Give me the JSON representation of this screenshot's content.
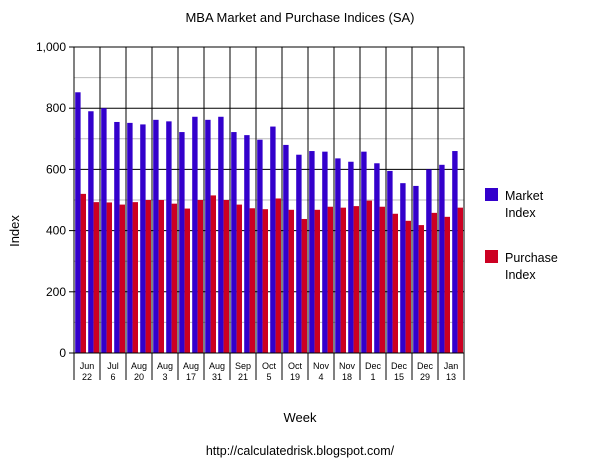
{
  "chart_data": {
    "type": "bar",
    "title": "MBA Market and Purchase Indices (SA)",
    "xlabel": "Week",
    "ylabel": "Index",
    "ylim": [
      0,
      1000
    ],
    "yticks": [
      0,
      200,
      400,
      600,
      800,
      "1,000"
    ],
    "grid": true,
    "legend_position": "right",
    "colors": {
      "market": "#3300cc",
      "purchase": "#cc0022"
    },
    "x_tick_labels": [
      [
        "Jun",
        "22"
      ],
      [
        "Jul",
        "6"
      ],
      [
        "Aug",
        "20"
      ],
      [
        "Aug",
        "3"
      ],
      [
        "Aug",
        "17"
      ],
      [
        "Aug",
        "31"
      ],
      [
        "Sep",
        "21"
      ],
      [
        "Oct",
        "5"
      ],
      [
        "Oct",
        "19"
      ],
      [
        "Nov",
        "4"
      ],
      [
        "Nov",
        "18"
      ],
      [
        "Dec",
        "1"
      ],
      [
        "Dec",
        "15"
      ],
      [
        "Dec",
        "29"
      ],
      [
        "Jan",
        "13"
      ]
    ],
    "series": [
      {
        "name": "Market Index",
        "values": [
          852,
          790,
          800,
          755,
          752,
          747,
          762,
          757,
          722,
          772,
          762,
          772,
          722,
          712,
          697,
          740,
          680,
          648,
          660,
          658,
          636,
          625,
          658,
          620,
          595,
          555,
          546,
          600,
          615,
          660
        ]
      },
      {
        "name": "Purchase Index",
        "values": [
          520,
          493,
          492,
          485,
          493,
          500,
          500,
          488,
          472,
          500,
          515,
          500,
          485,
          473,
          470,
          505,
          468,
          438,
          468,
          478,
          475,
          480,
          498,
          478,
          455,
          432,
          418,
          458,
          445,
          475
        ]
      }
    ]
  },
  "legend": {
    "market_line1": "Market",
    "market_line2": "Index",
    "purchase_line1": "Purchase",
    "purchase_line2": "Index"
  },
  "footer": {
    "source": "http://calculatedrisk.blogspot.com/"
  }
}
